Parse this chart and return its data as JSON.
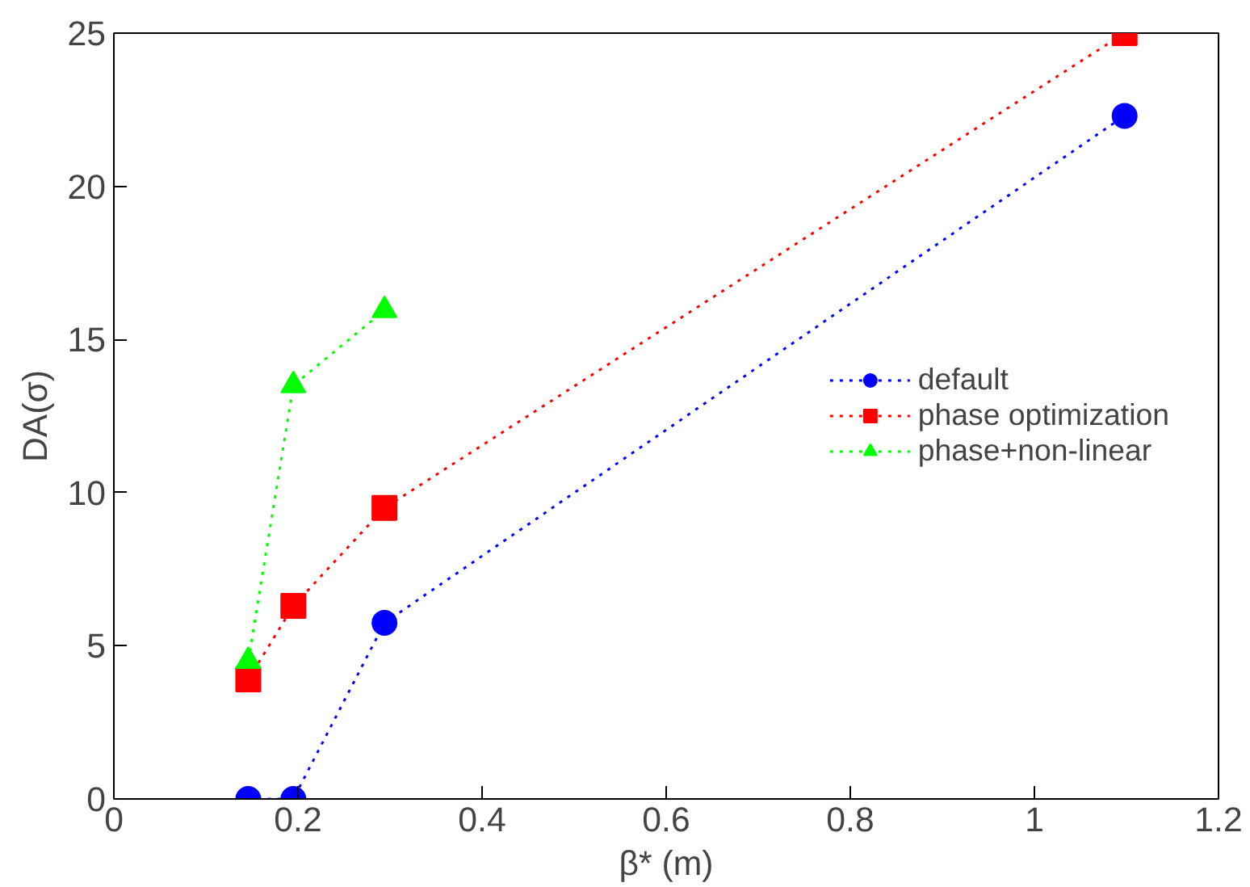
{
  "chart_data": {
    "type": "line",
    "xlabel": "β* (m)",
    "ylabel": "DA(σ)",
    "xlim": [
      0,
      1.2
    ],
    "xticks": [
      0,
      0.2,
      0.4,
      0.6,
      0.8,
      1,
      1.2
    ],
    "ylim": [
      0,
      25
    ],
    "yticks": [
      0,
      5,
      10,
      15,
      20,
      25
    ],
    "grid": false,
    "legend": "right",
    "line_style": "dotted",
    "series": [
      {
        "name": "default",
        "color": "#0000ff",
        "marker": "circle",
        "x": [
          0.146,
          0.195,
          0.294,
          1.098
        ],
        "values": [
          0,
          0,
          5.75,
          22.3
        ]
      },
      {
        "name": "phase optimization",
        "color": "#ff0000",
        "marker": "square",
        "x": [
          0.146,
          0.195,
          0.294,
          1.098
        ],
        "values": [
          3.9,
          6.3,
          9.5,
          25
        ]
      },
      {
        "name": "phase+non-linear",
        "color": "#00ff00",
        "marker": "triangle",
        "x": [
          0.146,
          0.195,
          0.294
        ],
        "values": [
          4.5,
          13.5,
          15.95
        ]
      }
    ]
  }
}
